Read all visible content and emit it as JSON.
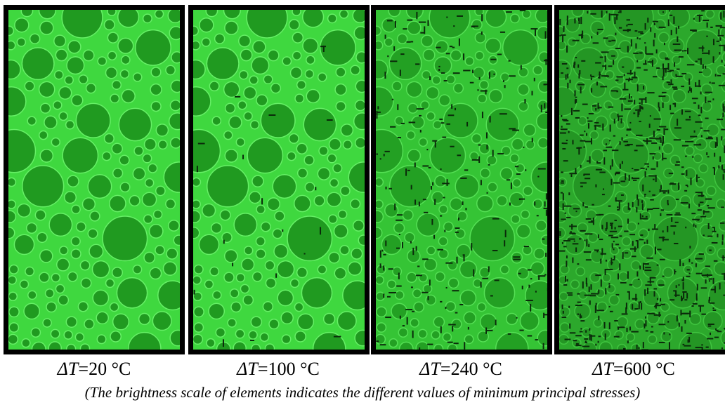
{
  "panels": [
    {
      "prefix": "ΔT",
      "suffix": "=20 °C"
    },
    {
      "prefix": "ΔT",
      "suffix": "=100 °C"
    },
    {
      "prefix": "ΔT",
      "suffix": "=240 °C"
    },
    {
      "prefix": "ΔT",
      "suffix": "=600 °C"
    }
  ],
  "caption": "(The brightness scale of elements indicates the different values of minimum principal stresses)"
}
